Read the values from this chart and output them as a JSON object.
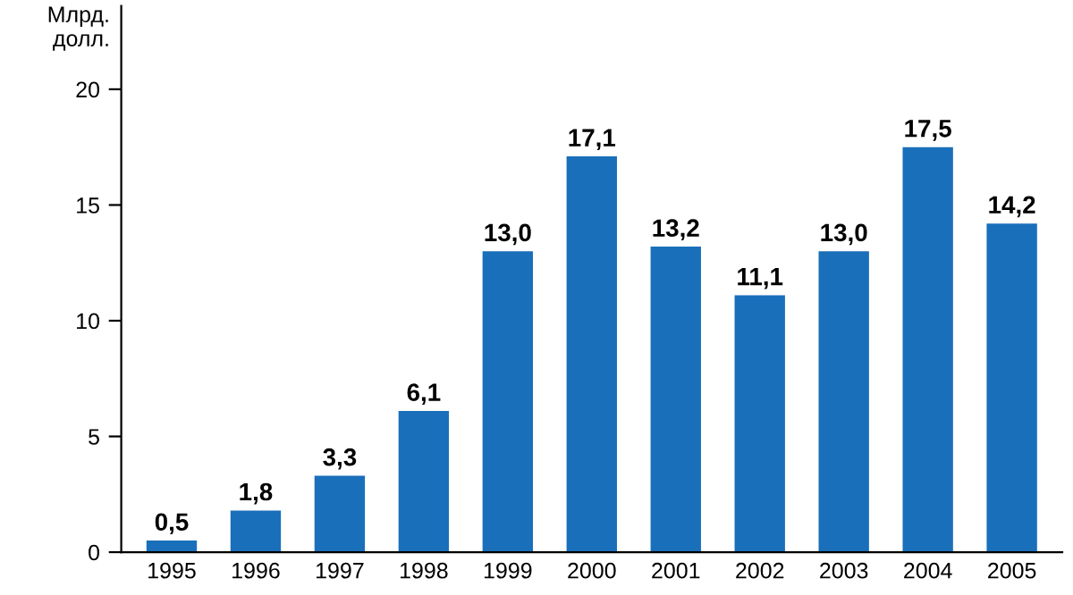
{
  "chart_data": {
    "type": "bar",
    "ylabel": "Млрд.\nдолл.",
    "categories": [
      "1995",
      "1996",
      "1997",
      "1998",
      "1999",
      "2000",
      "2001",
      "2002",
      "2003",
      "2004",
      "2005"
    ],
    "values": [
      0.5,
      1.8,
      3.3,
      6.1,
      13.0,
      17.1,
      13.2,
      11.1,
      13.0,
      17.5,
      14.2
    ],
    "value_labels": [
      "0,5",
      "1,8",
      "3,3",
      "6,1",
      "13,0",
      "17,1",
      "13,2",
      "11,1",
      "13,0",
      "17,5",
      "14,2"
    ],
    "color": "#1a6fba",
    "ylim": [
      0,
      23.6
    ],
    "yticks": [
      0,
      5,
      10,
      15,
      20
    ],
    "grid": false,
    "legend": false
  }
}
